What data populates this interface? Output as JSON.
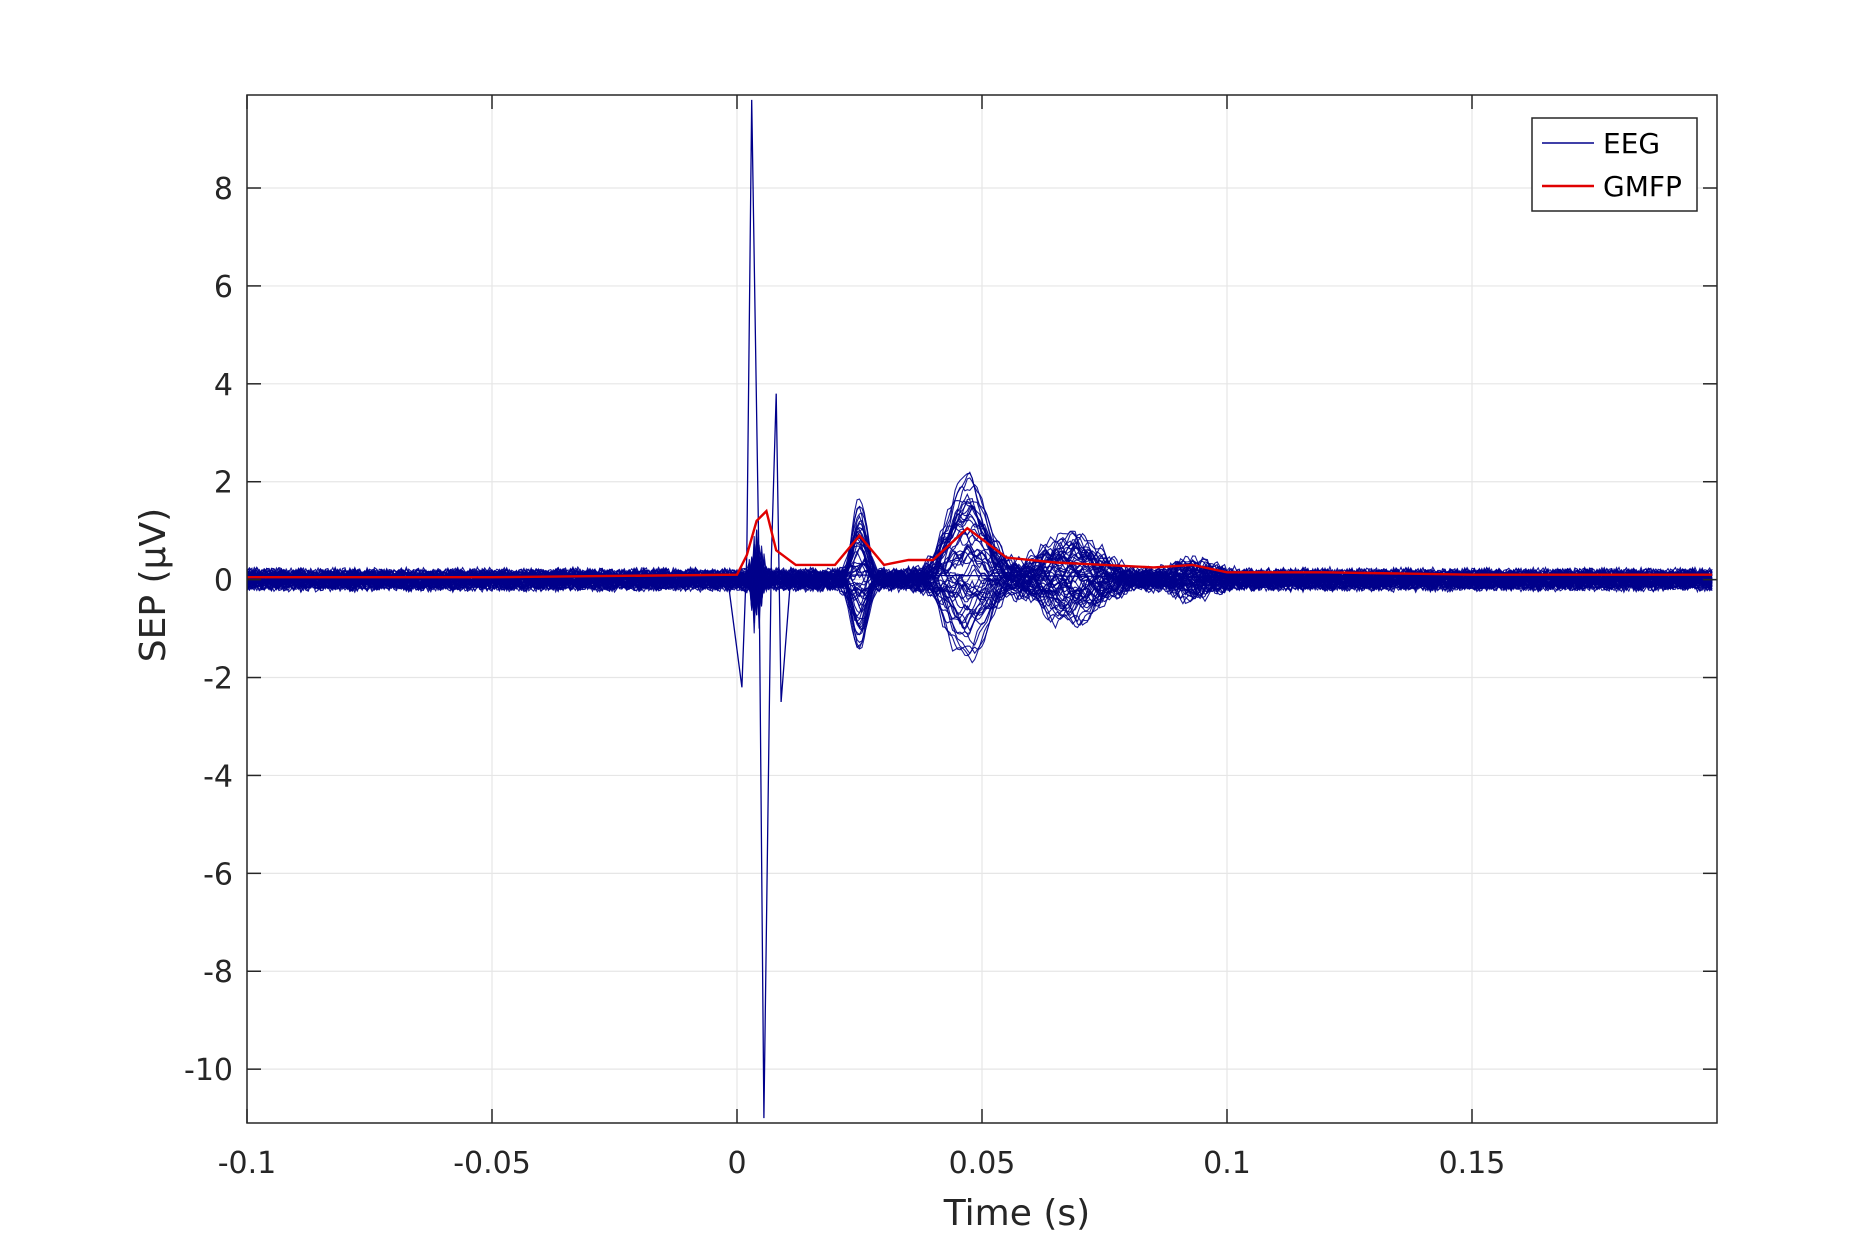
{
  "chart_data": {
    "type": "line",
    "title": "",
    "xlabel": "Time (s)",
    "ylabel": "SEP (μV)",
    "xlim": [
      -0.1,
      0.2
    ],
    "ylim": [
      -11.1,
      9.9
    ],
    "xticks": [
      -0.1,
      -0.05,
      0,
      0.05,
      0.1,
      0.15
    ],
    "xtick_labels": [
      "-0.1",
      "-0.05",
      "0",
      "0.05",
      "0.1",
      "0.15"
    ],
    "yticks": [
      -10,
      -8,
      -6,
      -4,
      -2,
      0,
      2,
      4,
      6,
      8
    ],
    "ytick_labels": [
      "-10",
      "-8",
      "-6",
      "-4",
      "-2",
      "0",
      "2",
      "4",
      "6",
      "8"
    ],
    "grid": true,
    "legend": {
      "position": "top-right",
      "entries": [
        "EEG",
        "GMFP"
      ]
    },
    "series": [
      {
        "name": "EEG",
        "color": "#00008B",
        "description_of_envelope": "overlaid channels",
        "peaks": [
          {
            "x": 0.003,
            "y": 9.8
          },
          {
            "x": 0.0055,
            "y": -11.0
          },
          {
            "x": 0.008,
            "y": 3.8
          },
          {
            "x": 0.001,
            "y": -2.2
          },
          {
            "x": 0.009,
            "y": -2.5
          },
          {
            "x": 0.025,
            "y": 1.9
          },
          {
            "x": 0.026,
            "y": -1.2
          },
          {
            "x": 0.047,
            "y": 1.5
          },
          {
            "x": 0.048,
            "y": -2.5
          },
          {
            "x": 0.068,
            "y": 1.3
          },
          {
            "x": 0.093,
            "y": 0.5
          }
        ]
      },
      {
        "name": "GMFP",
        "color": "#E00000",
        "x": [
          -0.1,
          -0.05,
          0,
          0.002,
          0.004,
          0.006,
          0.008,
          0.012,
          0.02,
          0.025,
          0.03,
          0.035,
          0.04,
          0.047,
          0.055,
          0.065,
          0.075,
          0.085,
          0.093,
          0.1,
          0.12,
          0.15,
          0.199
        ],
        "y": [
          0.05,
          0.05,
          0.1,
          0.5,
          1.2,
          1.4,
          0.6,
          0.3,
          0.3,
          0.9,
          0.3,
          0.4,
          0.4,
          1.05,
          0.45,
          0.35,
          0.3,
          0.25,
          0.3,
          0.15,
          0.15,
          0.1,
          0.1
        ]
      }
    ]
  }
}
